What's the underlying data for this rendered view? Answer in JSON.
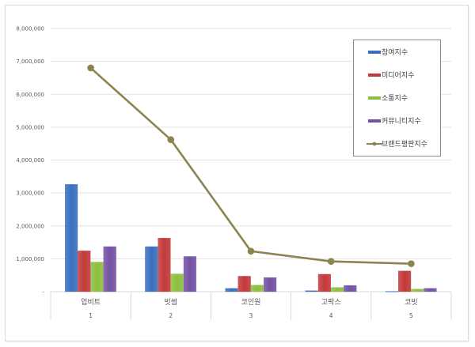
{
  "chart_data": {
    "type": "bar",
    "title": "",
    "xlabel": "",
    "ylabel": "",
    "ylim": [
      0,
      8000000
    ],
    "yticks": [
      0,
      1000000,
      2000000,
      3000000,
      4000000,
      5000000,
      6000000,
      7000000,
      8000000
    ],
    "ytick_labels": [
      "-",
      "1,000,000",
      "2,000,000",
      "3,000,000",
      "4,000,000",
      "5,000,000",
      "6,000,000",
      "7,000,000",
      "8,000,000"
    ],
    "grid": true,
    "legend_position": "right-top-inside",
    "categories": [
      "업비트",
      "빗썸",
      "코인원",
      "고팍스",
      "코빗"
    ],
    "category_numbers": [
      "1",
      "2",
      "3",
      "4",
      "5"
    ],
    "series": [
      {
        "name": "참여지수",
        "type": "bar",
        "color": "#3a6fbf",
        "values": [
          3260000,
          1370000,
          100000,
          30000,
          10000
        ]
      },
      {
        "name": "미디어지수",
        "type": "bar",
        "color": "#c23a3a",
        "values": [
          1240000,
          1630000,
          470000,
          530000,
          630000
        ]
      },
      {
        "name": "소통지수",
        "type": "bar",
        "color": "#8cbf3f",
        "values": [
          900000,
          540000,
          200000,
          130000,
          80000
        ]
      },
      {
        "name": "커뮤니티지수",
        "type": "bar",
        "color": "#7352a3",
        "values": [
          1370000,
          1070000,
          430000,
          190000,
          100000
        ]
      },
      {
        "name": "브랜드평판지수",
        "type": "line",
        "color": "#8b8450",
        "values": [
          6800000,
          4620000,
          1230000,
          920000,
          850000
        ]
      }
    ]
  }
}
